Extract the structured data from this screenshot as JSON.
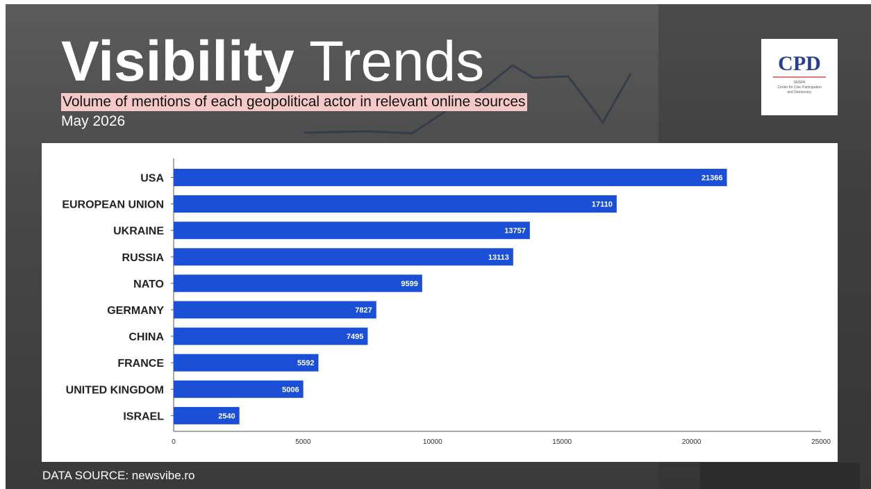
{
  "header": {
    "title_bold": "Visibility",
    "title_light": "Trends",
    "subtitle": "Volume of mentions of each geopolitical actor in relevant online sources",
    "period": "May 2026"
  },
  "logo": {
    "mark": "CPD",
    "line1": "SNSPA",
    "line2": "Center for Civic Participation",
    "line3": "and Democracy"
  },
  "footer": {
    "source": "DATA SOURCE: newsvibe.ro"
  },
  "colors": {
    "bar": "#1a4fd6",
    "subtitle_highlight": "#f6c9c9",
    "logo": "#2a3d8f"
  },
  "chart_data": {
    "type": "bar",
    "orientation": "horizontal",
    "categories": [
      "USA",
      "EUROPEAN UNION",
      "UKRAINE",
      "RUSSIA",
      "NATO",
      "GERMANY",
      "CHINA",
      "FRANCE",
      "UNITED KINGDOM",
      "ISRAEL"
    ],
    "values": [
      21366,
      17110,
      13757,
      13113,
      9599,
      7827,
      7495,
      5592,
      5006,
      2540
    ],
    "xlim": [
      0,
      25000
    ],
    "xticks": [
      0,
      5000,
      10000,
      15000,
      20000,
      25000
    ],
    "grid": false,
    "data_labels": true
  }
}
